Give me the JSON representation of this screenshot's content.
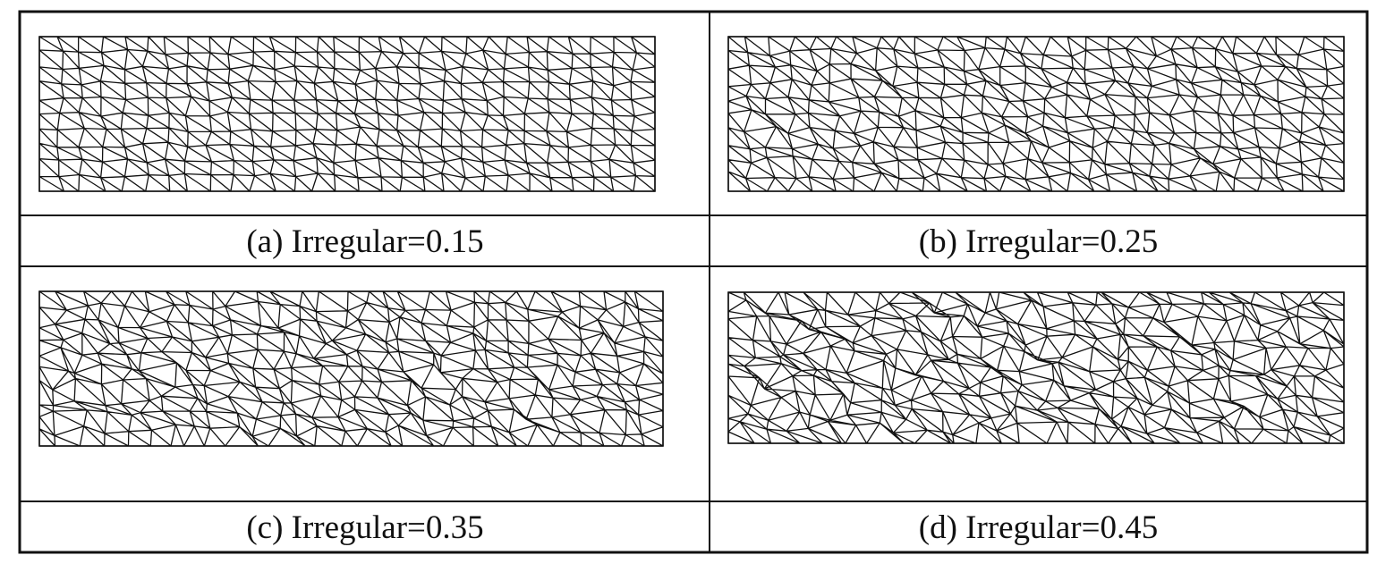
{
  "figure": {
    "panels": [
      {
        "id": "a",
        "caption": "(a) Irregular=0.15",
        "irregularity": 0.15
      },
      {
        "id": "b",
        "caption": "(b) Irregular=0.25",
        "irregularity": 0.25
      },
      {
        "id": "c",
        "caption": "(c) Irregular=0.35",
        "irregularity": 0.35
      },
      {
        "id": "d",
        "caption": "(d) Irregular=0.45",
        "irregularity": 0.45
      }
    ]
  },
  "colors": {
    "line": "#111111",
    "background": "#ffffff"
  }
}
